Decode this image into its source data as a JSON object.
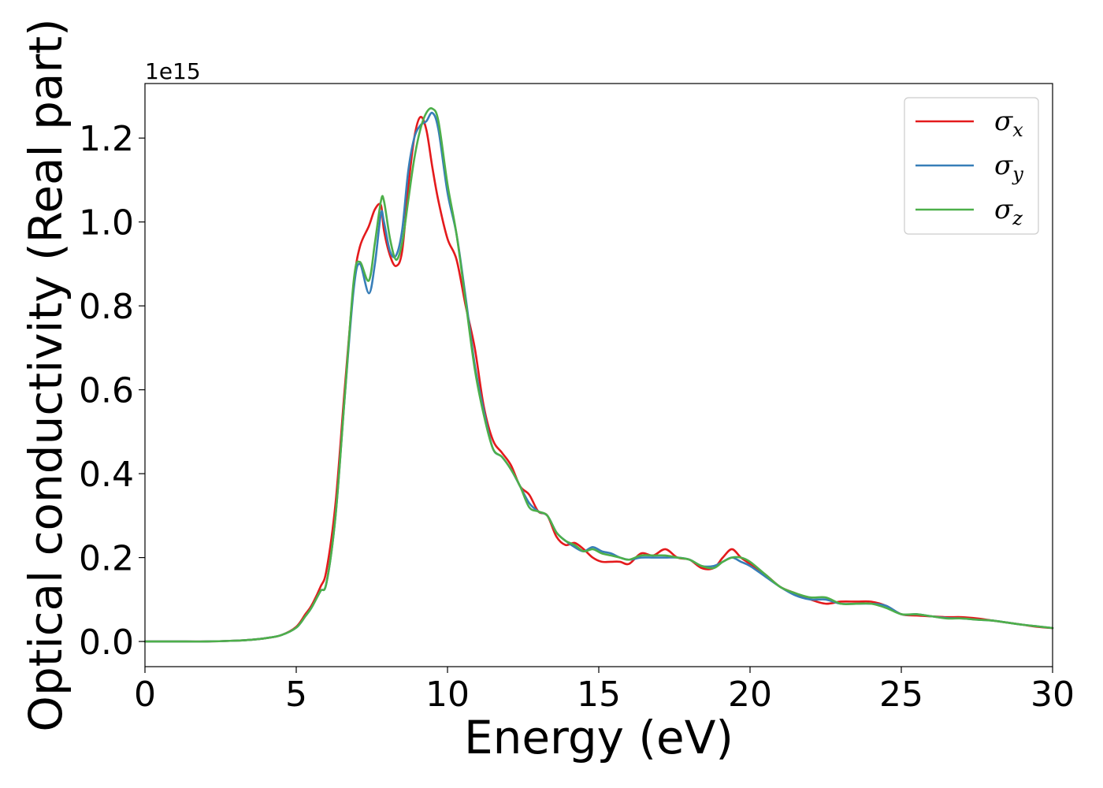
{
  "chart_data": {
    "type": "line",
    "xlabel": "Energy (eV)",
    "ylabel": "Optical conductivity (Real part)",
    "y_offset_text": "1e15",
    "xlim": [
      0,
      30
    ],
    "ylim": [
      -0.06,
      1.33
    ],
    "x_ticks": [
      0,
      5,
      10,
      15,
      20,
      25,
      30
    ],
    "x_tick_labels": [
      "0",
      "5",
      "10",
      "15",
      "20",
      "25",
      "30"
    ],
    "y_ticks": [
      0.0,
      0.2,
      0.4,
      0.6,
      0.8,
      1.0,
      1.2
    ],
    "y_tick_labels": [
      "0.0",
      "0.2",
      "0.4",
      "0.6",
      "0.8",
      "1.0",
      "1.2"
    ],
    "grid": false,
    "legend_position": "top-right",
    "x": [
      0,
      1,
      2,
      3,
      3.5,
      4,
      4.5,
      5,
      5.3,
      5.5,
      5.8,
      6.0,
      6.3,
      6.6,
      6.9,
      7.1,
      7.4,
      7.6,
      7.8,
      7.9,
      8.1,
      8.3,
      8.5,
      8.7,
      8.9,
      9.1,
      9.3,
      9.5,
      9.7,
      10.0,
      10.3,
      10.6,
      10.9,
      11.2,
      11.5,
      11.8,
      12.1,
      12.4,
      12.7,
      13.0,
      13.3,
      13.6,
      13.9,
      14.2,
      14.5,
      14.8,
      15.1,
      15.4,
      15.7,
      16.0,
      16.4,
      16.8,
      17.2,
      17.6,
      18.0,
      18.4,
      18.8,
      19.1,
      19.4,
      19.7,
      20.0,
      20.5,
      21.0,
      21.5,
      22.0,
      22.5,
      23.0,
      23.5,
      24.0,
      24.5,
      25.0,
      25.5,
      26.0,
      26.5,
      27.0,
      27.5,
      28.0,
      28.5,
      29.0,
      29.5,
      30.0
    ],
    "series": [
      {
        "name": "σ",
        "subscript": "x",
        "color": "#e41a1c",
        "values": [
          0.0,
          0.0,
          0.0,
          0.002,
          0.004,
          0.008,
          0.015,
          0.035,
          0.065,
          0.085,
          0.13,
          0.17,
          0.33,
          0.6,
          0.85,
          0.94,
          0.99,
          1.03,
          1.04,
          0.98,
          0.92,
          0.895,
          0.93,
          1.08,
          1.2,
          1.25,
          1.22,
          1.13,
          1.05,
          0.96,
          0.91,
          0.8,
          0.7,
          0.56,
          0.48,
          0.45,
          0.42,
          0.37,
          0.35,
          0.31,
          0.3,
          0.25,
          0.23,
          0.235,
          0.22,
          0.2,
          0.19,
          0.19,
          0.19,
          0.185,
          0.21,
          0.205,
          0.22,
          0.2,
          0.195,
          0.175,
          0.175,
          0.2,
          0.22,
          0.2,
          0.185,
          0.16,
          0.13,
          0.115,
          0.1,
          0.09,
          0.095,
          0.095,
          0.095,
          0.085,
          0.065,
          0.062,
          0.06,
          0.058,
          0.058,
          0.055,
          0.05,
          0.045,
          0.04,
          0.035,
          0.032
        ]
      },
      {
        "name": "σ",
        "subscript": "y",
        "color": "#377eb8",
        "values": [
          0.0,
          0.0,
          0.0,
          0.002,
          0.004,
          0.008,
          0.015,
          0.033,
          0.06,
          0.08,
          0.12,
          0.14,
          0.3,
          0.58,
          0.84,
          0.9,
          0.83,
          0.9,
          1.02,
          1.0,
          0.93,
          0.92,
          0.98,
          1.12,
          1.2,
          1.23,
          1.24,
          1.26,
          1.22,
          1.07,
          0.97,
          0.82,
          0.66,
          0.55,
          0.46,
          0.44,
          0.41,
          0.37,
          0.33,
          0.31,
          0.3,
          0.26,
          0.24,
          0.225,
          0.215,
          0.225,
          0.215,
          0.21,
          0.2,
          0.195,
          0.2,
          0.2,
          0.2,
          0.2,
          0.195,
          0.18,
          0.18,
          0.19,
          0.2,
          0.19,
          0.18,
          0.155,
          0.13,
          0.11,
          0.1,
          0.1,
          0.09,
          0.09,
          0.09,
          0.085,
          0.065,
          0.065,
          0.06,
          0.056,
          0.055,
          0.052,
          0.05,
          0.045,
          0.04,
          0.036,
          0.032
        ]
      },
      {
        "name": "σ",
        "subscript": "z",
        "color": "#4daf4a",
        "values": [
          0.0,
          0.0,
          0.0,
          0.002,
          0.004,
          0.008,
          0.015,
          0.033,
          0.06,
          0.08,
          0.12,
          0.14,
          0.3,
          0.58,
          0.86,
          0.905,
          0.86,
          0.95,
          1.05,
          1.05,
          0.96,
          0.91,
          0.95,
          1.05,
          1.15,
          1.22,
          1.26,
          1.27,
          1.24,
          1.09,
          0.97,
          0.81,
          0.65,
          0.54,
          0.46,
          0.44,
          0.41,
          0.37,
          0.32,
          0.31,
          0.3,
          0.26,
          0.24,
          0.23,
          0.215,
          0.22,
          0.21,
          0.205,
          0.2,
          0.195,
          0.205,
          0.205,
          0.205,
          0.2,
          0.195,
          0.18,
          0.175,
          0.19,
          0.2,
          0.2,
          0.19,
          0.16,
          0.13,
          0.115,
          0.105,
          0.105,
          0.09,
          0.09,
          0.09,
          0.08,
          0.065,
          0.065,
          0.06,
          0.055,
          0.055,
          0.052,
          0.05,
          0.045,
          0.04,
          0.036,
          0.032
        ]
      }
    ]
  }
}
